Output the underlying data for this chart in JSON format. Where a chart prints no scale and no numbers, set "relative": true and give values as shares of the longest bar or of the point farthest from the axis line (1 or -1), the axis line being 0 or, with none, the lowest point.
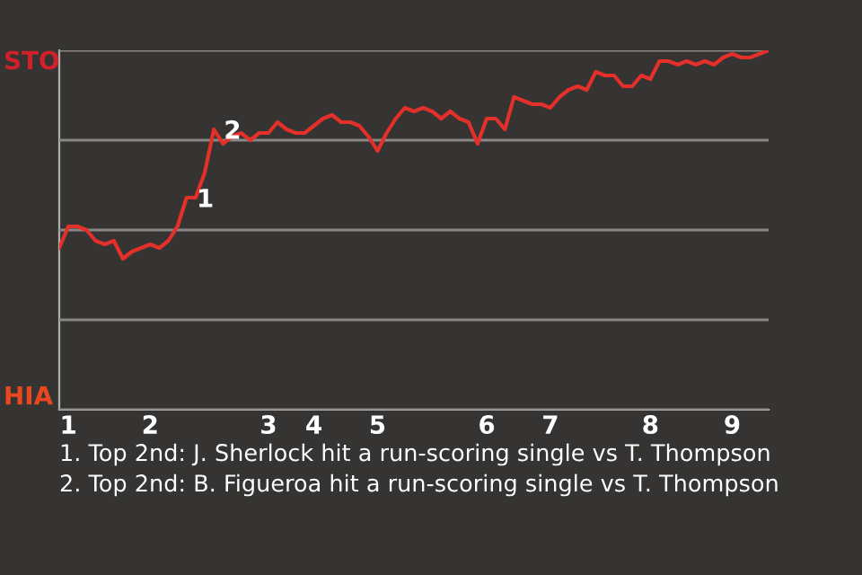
{
  "chart_data": {
    "type": "line",
    "relative": true,
    "categories": [
      null,
      "1",
      null,
      null,
      null,
      null,
      null,
      null,
      null,
      null,
      "2",
      null,
      null,
      null,
      null,
      null,
      null,
      null,
      null,
      null,
      null,
      null,
      null,
      "3",
      null,
      null,
      null,
      null,
      "4",
      null,
      null,
      null,
      null,
      null,
      null,
      "5",
      null,
      null,
      null,
      null,
      null,
      null,
      null,
      null,
      null,
      null,
      null,
      "6",
      null,
      null,
      null,
      null,
      null,
      null,
      "7",
      null,
      null,
      null,
      null,
      null,
      null,
      null,
      null,
      null,
      null,
      "8",
      null,
      null,
      null,
      null,
      null,
      null,
      null,
      null,
      "9",
      null,
      null,
      null,
      null
    ],
    "series": [
      {
        "color": "#e3302a",
        "values": [
          0.45,
          0.51,
          0.51,
          0.5,
          0.47,
          0.46,
          0.47,
          0.42,
          0.44,
          0.45,
          0.46,
          0.45,
          0.47,
          0.51,
          0.59,
          0.59,
          0.66,
          0.78,
          0.74,
          0.76,
          0.77,
          0.75,
          0.77,
          0.77,
          0.8,
          0.78,
          0.77,
          0.77,
          0.79,
          0.81,
          0.82,
          0.8,
          0.8,
          0.79,
          0.76,
          0.72,
          0.77,
          0.81,
          0.84,
          0.83,
          0.84,
          0.83,
          0.81,
          0.83,
          0.81,
          0.8,
          0.74,
          0.81,
          0.81,
          0.78,
          0.87,
          0.86,
          0.85,
          0.85,
          0.84,
          0.87,
          0.89,
          0.9,
          0.89,
          0.94,
          0.93,
          0.93,
          0.9,
          0.9,
          0.93,
          0.92,
          0.97,
          0.97,
          0.96,
          0.97,
          0.96,
          0.97,
          0.96,
          0.98,
          0.99,
          0.98,
          0.98,
          0.99,
          1.0
        ]
      }
    ],
    "grid": "y",
    "annotations": [
      "STO",
      "HIA",
      {
        "text": "1",
        "y": 0.59
      },
      {
        "text": "2",
        "y": 0.78
      },
      "1. Top 2nd: J. Sherlock hit a run-scoring single vs T. Thompson",
      "2. Top 2nd: B. Figueroa hit a run-scoring single vs T. Thompson"
    ]
  }
}
